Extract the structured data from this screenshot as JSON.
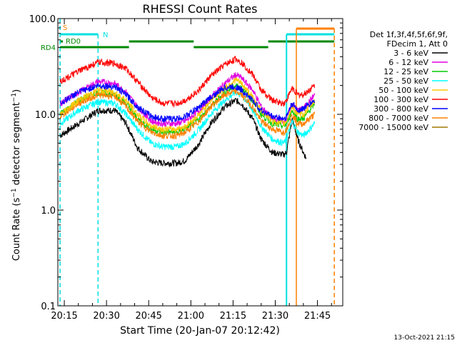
{
  "chart_data": {
    "type": "line",
    "title": "RHESSI Count Rates",
    "xlabel": "Start Time (20-Jan-07 20:12:42)",
    "ylabel_main": "Count Rate (s",
    "ylabel_sup": "−1",
    "ylabel_mid": " detector segment",
    "ylabel_sup2": "−1",
    "ylabel_end": ")",
    "yscale": "log",
    "xlim": [
      12.7,
      114
    ],
    "ylim": [
      0.1,
      100
    ],
    "xtick_values": [
      15,
      30,
      45,
      60,
      75,
      90,
      105
    ],
    "xtick_labels": [
      "20:15",
      "20:30",
      "20:45",
      "21:00",
      "21:15",
      "21:30",
      "21:45"
    ],
    "ytick_values": [
      0.1,
      1,
      10,
      100
    ],
    "ytick_labels": [
      "0.1",
      "1.0",
      "10.0",
      "100.0"
    ],
    "legend_header": [
      "Det 1f,3f,4f,5f,6f,9f,",
      "FDecim 1, Att 0"
    ],
    "series": [
      {
        "name": "3 - 6 keV",
        "color": "#000000",
        "x": [
          13.5,
          20,
          27,
          33,
          37,
          41,
          46,
          50,
          55,
          58,
          63,
          67,
          72,
          76,
          78,
          82,
          85,
          89,
          93,
          94,
          96,
          98,
          100,
          101
        ],
        "values": [
          6,
          8,
          11,
          11,
          8,
          4.5,
          3.2,
          3.1,
          3.1,
          3.3,
          5,
          8,
          12,
          14,
          13,
          9,
          5.5,
          4,
          3.8,
          4,
          9,
          5.5,
          4,
          3.5
        ]
      },
      {
        "name": "6 - 12 keV",
        "color": "#e000e0",
        "x": [
          13.5,
          20,
          27,
          33,
          37,
          41,
          46,
          50,
          55,
          58,
          63,
          67,
          72,
          76,
          78,
          82,
          85,
          89,
          93,
          94,
          96,
          98,
          100,
          104
        ],
        "values": [
          13,
          17,
          22,
          21,
          17,
          12,
          8.5,
          8,
          8,
          8.5,
          11,
          15,
          21,
          26,
          24,
          18,
          12,
          9,
          8.5,
          9,
          13,
          11,
          11.5,
          16
        ]
      },
      {
        "name": "12 - 25 keV",
        "color": "#00cc00",
        "x": [
          13.5,
          20,
          27,
          33,
          37,
          41,
          46,
          50,
          55,
          58,
          63,
          67,
          72,
          76,
          78,
          82,
          85,
          89,
          93,
          94,
          96,
          98,
          100,
          104
        ],
        "values": [
          10,
          14,
          17,
          16,
          13,
          9,
          7,
          6.5,
          6.5,
          7,
          9,
          12,
          17,
          20,
          19,
          14,
          10,
          8,
          7.5,
          8,
          11,
          9,
          9,
          13
        ]
      },
      {
        "name": "25 - 50 keV",
        "color": "#00ffff",
        "x": [
          13.5,
          20,
          27,
          33,
          37,
          41,
          46,
          50,
          55,
          58,
          63,
          67,
          72,
          76,
          78,
          82,
          85,
          89,
          93,
          94,
          96,
          98,
          100,
          104
        ],
        "values": [
          8,
          11,
          13.5,
          13,
          10,
          7,
          5,
          4.6,
          4.6,
          5,
          7,
          10,
          14,
          17,
          16,
          11,
          7.5,
          5.5,
          5,
          5.5,
          8.5,
          6.5,
          6,
          8
        ]
      },
      {
        "name": "50 - 100 keV",
        "color": "#ffc800",
        "x": [
          13.5,
          20,
          27,
          33,
          37,
          41,
          46,
          50,
          55,
          58,
          63,
          67,
          72,
          76,
          78,
          82,
          85,
          89,
          93,
          94,
          96,
          98,
          100,
          104
        ],
        "values": [
          10,
          14,
          18,
          17,
          14,
          10,
          7.5,
          7,
          7,
          7.5,
          10,
          14,
          19,
          23,
          21,
          15,
          11,
          8.5,
          8,
          8.5,
          12,
          10,
          10,
          14
        ]
      },
      {
        "name": "100 - 300 keV",
        "color": "#ff0000",
        "x": [
          13.5,
          20,
          27,
          33,
          37,
          41,
          46,
          50,
          55,
          58,
          63,
          67,
          72,
          76,
          78,
          82,
          85,
          89,
          93,
          94,
          96,
          98,
          100,
          104
        ],
        "values": [
          22,
          28,
          35,
          34,
          30,
          22,
          15,
          13,
          13,
          14,
          18,
          25,
          33,
          38,
          35,
          26,
          18,
          14,
          13,
          14,
          19,
          16,
          16,
          20
        ]
      },
      {
        "name": "300 - 800 keV",
        "color": "#0000ff",
        "x": [
          13.5,
          20,
          27,
          33,
          37,
          41,
          46,
          50,
          55,
          58,
          63,
          67,
          72,
          76,
          78,
          82,
          85,
          89,
          93,
          94,
          96,
          98,
          100,
          104
        ],
        "values": [
          13,
          17,
          20,
          19.5,
          16,
          12,
          9.5,
          9,
          9,
          9.5,
          12,
          15,
          19,
          19.5,
          18,
          14,
          11,
          9.5,
          9,
          9.5,
          13,
          11,
          11.5,
          14
        ]
      },
      {
        "name": "800 - 7000 keV",
        "color": "#ff8000",
        "x": [
          13.5,
          20,
          27,
          33,
          37,
          41,
          46,
          50,
          55,
          58,
          63,
          67,
          72,
          76,
          78,
          82,
          85,
          89,
          93,
          94,
          96,
          98,
          100,
          104
        ],
        "values": [
          9.5,
          13,
          16,
          15.5,
          12,
          8.5,
          6.5,
          6,
          6,
          6.5,
          8.5,
          12,
          16,
          17.5,
          16,
          12,
          8.5,
          7,
          6.5,
          7,
          10,
          8,
          8,
          10
        ]
      },
      {
        "name": "7000 - 15000 keV",
        "color": "#a07800",
        "x": [],
        "values": []
      }
    ],
    "annotations": [
      {
        "text": "S",
        "color": "#ff8000"
      },
      {
        "text": "N",
        "color": "#00e0e0"
      },
      {
        "text": "RD0",
        "color": "#008800"
      },
      {
        "text": "RD4",
        "color": "#008800"
      }
    ]
  },
  "footer_date": "13-Oct-2021 21:15"
}
